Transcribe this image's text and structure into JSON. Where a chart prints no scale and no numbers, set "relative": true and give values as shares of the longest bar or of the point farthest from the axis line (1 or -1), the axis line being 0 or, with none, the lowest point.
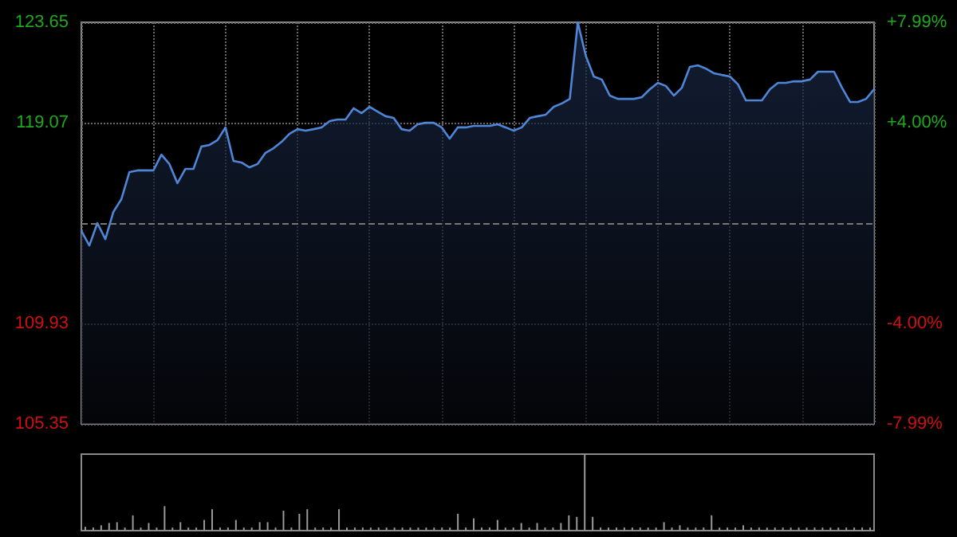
{
  "chart_data": [
    {
      "type": "area",
      "categories": [
        null,
        null,
        null,
        null,
        null,
        null,
        null,
        null,
        null,
        null,
        null,
        null,
        null,
        null,
        null,
        null,
        null,
        null,
        null,
        null,
        null,
        null,
        null,
        null,
        null,
        null,
        null,
        null,
        null,
        null,
        null,
        null,
        null,
        null,
        null,
        null,
        null,
        null,
        null,
        null,
        null,
        null,
        null,
        null,
        null,
        null,
        null,
        null,
        null,
        null,
        null,
        null,
        null,
        null,
        null,
        null,
        null,
        null,
        null,
        null,
        null,
        null,
        null,
        null,
        null,
        null,
        null,
        null,
        null,
        null,
        null,
        null,
        null,
        null,
        null,
        null,
        null,
        null,
        null,
        null,
        null,
        null,
        null,
        null,
        null,
        null,
        null,
        null,
        null,
        null,
        null,
        null,
        null,
        null,
        null,
        null,
        null,
        null,
        null,
        null
      ],
      "series": [
        {
          "color": "#4f86d8",
          "values": [
            114.14,
            113.48,
            114.5,
            113.77,
            115.01,
            115.59,
            116.82,
            116.9,
            116.9,
            116.9,
            117.62,
            117.19,
            116.32,
            116.97,
            116.97,
            117.99,
            118.06,
            118.28,
            118.86,
            117.33,
            117.26,
            117.04,
            117.19,
            117.7,
            117.91,
            118.2,
            118.57,
            118.78,
            118.71,
            118.78,
            118.86,
            119.15,
            119.22,
            119.22,
            119.73,
            119.51,
            119.8,
            119.58,
            119.37,
            119.29,
            118.78,
            118.71,
            119.0,
            119.07,
            119.07,
            118.86,
            118.35,
            118.86,
            118.86,
            118.93,
            118.93,
            118.93,
            119.0,
            118.86,
            118.71,
            118.86,
            119.29,
            119.37,
            119.44,
            119.8,
            119.95,
            120.16,
            123.65,
            122.12,
            121.18,
            121.04,
            120.31,
            120.16,
            120.16,
            120.16,
            120.24,
            120.6,
            120.89,
            120.75,
            120.31,
            120.67,
            121.62,
            121.69,
            121.54,
            121.33,
            121.25,
            121.18,
            120.82,
            120.09,
            120.09,
            120.09,
            120.6,
            120.89,
            120.89,
            120.96,
            120.96,
            121.04,
            121.4,
            121.4,
            121.4,
            120.67,
            120.02,
            120.02,
            120.16,
            120.6
          ]
        }
      ],
      "ylim": [
        105.35,
        123.65
      ],
      "yticks": [
        105.35,
        109.93,
        119.07,
        123.65
      ],
      "y2lim": [
        -7.99,
        7.99
      ],
      "y2ticks": [
        {
          "value": 7.99,
          "label": "+7.99%"
        },
        {
          "value": 4,
          "label": "+4.00%"
        },
        {
          "value": -4,
          "label": "-4.00%"
        },
        {
          "value": -7.99,
          "label": "-7.99%"
        }
      ],
      "ref_lines": [
        {
          "axis": "y",
          "value": 114.5,
          "line_style": "dashed",
          "color": "#777777"
        }
      ],
      "grid": true,
      "tick_labels": "y",
      "line_style": "solid"
    },
    {
      "type": "bar",
      "relative": true,
      "color": "#9a9a9a",
      "tick_labels": false,
      "categories": [
        null,
        null,
        null,
        null,
        null,
        null,
        null,
        null,
        null,
        null,
        null,
        null,
        null,
        null,
        null,
        null,
        null,
        null,
        null,
        null,
        null,
        null,
        null,
        null,
        null,
        null,
        null,
        null,
        null,
        null,
        null,
        null,
        null,
        null,
        null,
        null,
        null,
        null,
        null,
        null,
        null,
        null,
        null,
        null,
        null,
        null,
        null,
        null,
        null,
        null,
        null,
        null,
        null,
        null,
        null,
        null,
        null,
        null,
        null,
        null,
        null,
        null,
        null,
        null,
        null,
        null,
        null,
        null,
        null,
        null,
        null,
        null,
        null,
        null,
        null,
        null,
        null,
        null,
        null,
        null,
        null,
        null,
        null,
        null,
        null,
        null,
        null,
        null,
        null,
        null,
        null,
        null,
        null,
        null,
        null,
        null,
        null,
        null,
        null,
        null
      ],
      "values": [
        0.05,
        0.04,
        0.07,
        0.1,
        0.11,
        0.04,
        0.2,
        0.04,
        0.1,
        0.04,
        0.32,
        0.04,
        0.11,
        0.04,
        0.04,
        0.14,
        0.28,
        0.04,
        0.04,
        0.14,
        0.04,
        0.04,
        0.11,
        0.11,
        0.04,
        0.26,
        0.04,
        0.22,
        0.28,
        0.04,
        0.04,
        0.04,
        0.28,
        0.04,
        0.04,
        0.04,
        0.04,
        0.04,
        0.04,
        0.04,
        0.04,
        0.04,
        0.04,
        0.04,
        0.04,
        0.04,
        0.04,
        0.22,
        0.04,
        0.16,
        0.04,
        0.04,
        0.14,
        0.04,
        0.04,
        0.1,
        0.04,
        0.1,
        0.04,
        0.04,
        0.1,
        0.2,
        0.18,
        1,
        0.18,
        0.04,
        0.04,
        0.04,
        0.04,
        0.04,
        0.04,
        0.04,
        0.04,
        0.11,
        0.04,
        0.07,
        0.04,
        0.04,
        0.04,
        0.2,
        0.04,
        0.04,
        0.04,
        0.07,
        0.04,
        0.04,
        0.04,
        0.04,
        0.04,
        0.04,
        0.04,
        0.04,
        0.04,
        0.04,
        0.04,
        0.04,
        0.04,
        0.04,
        0.04,
        0.04
      ]
    }
  ]
}
